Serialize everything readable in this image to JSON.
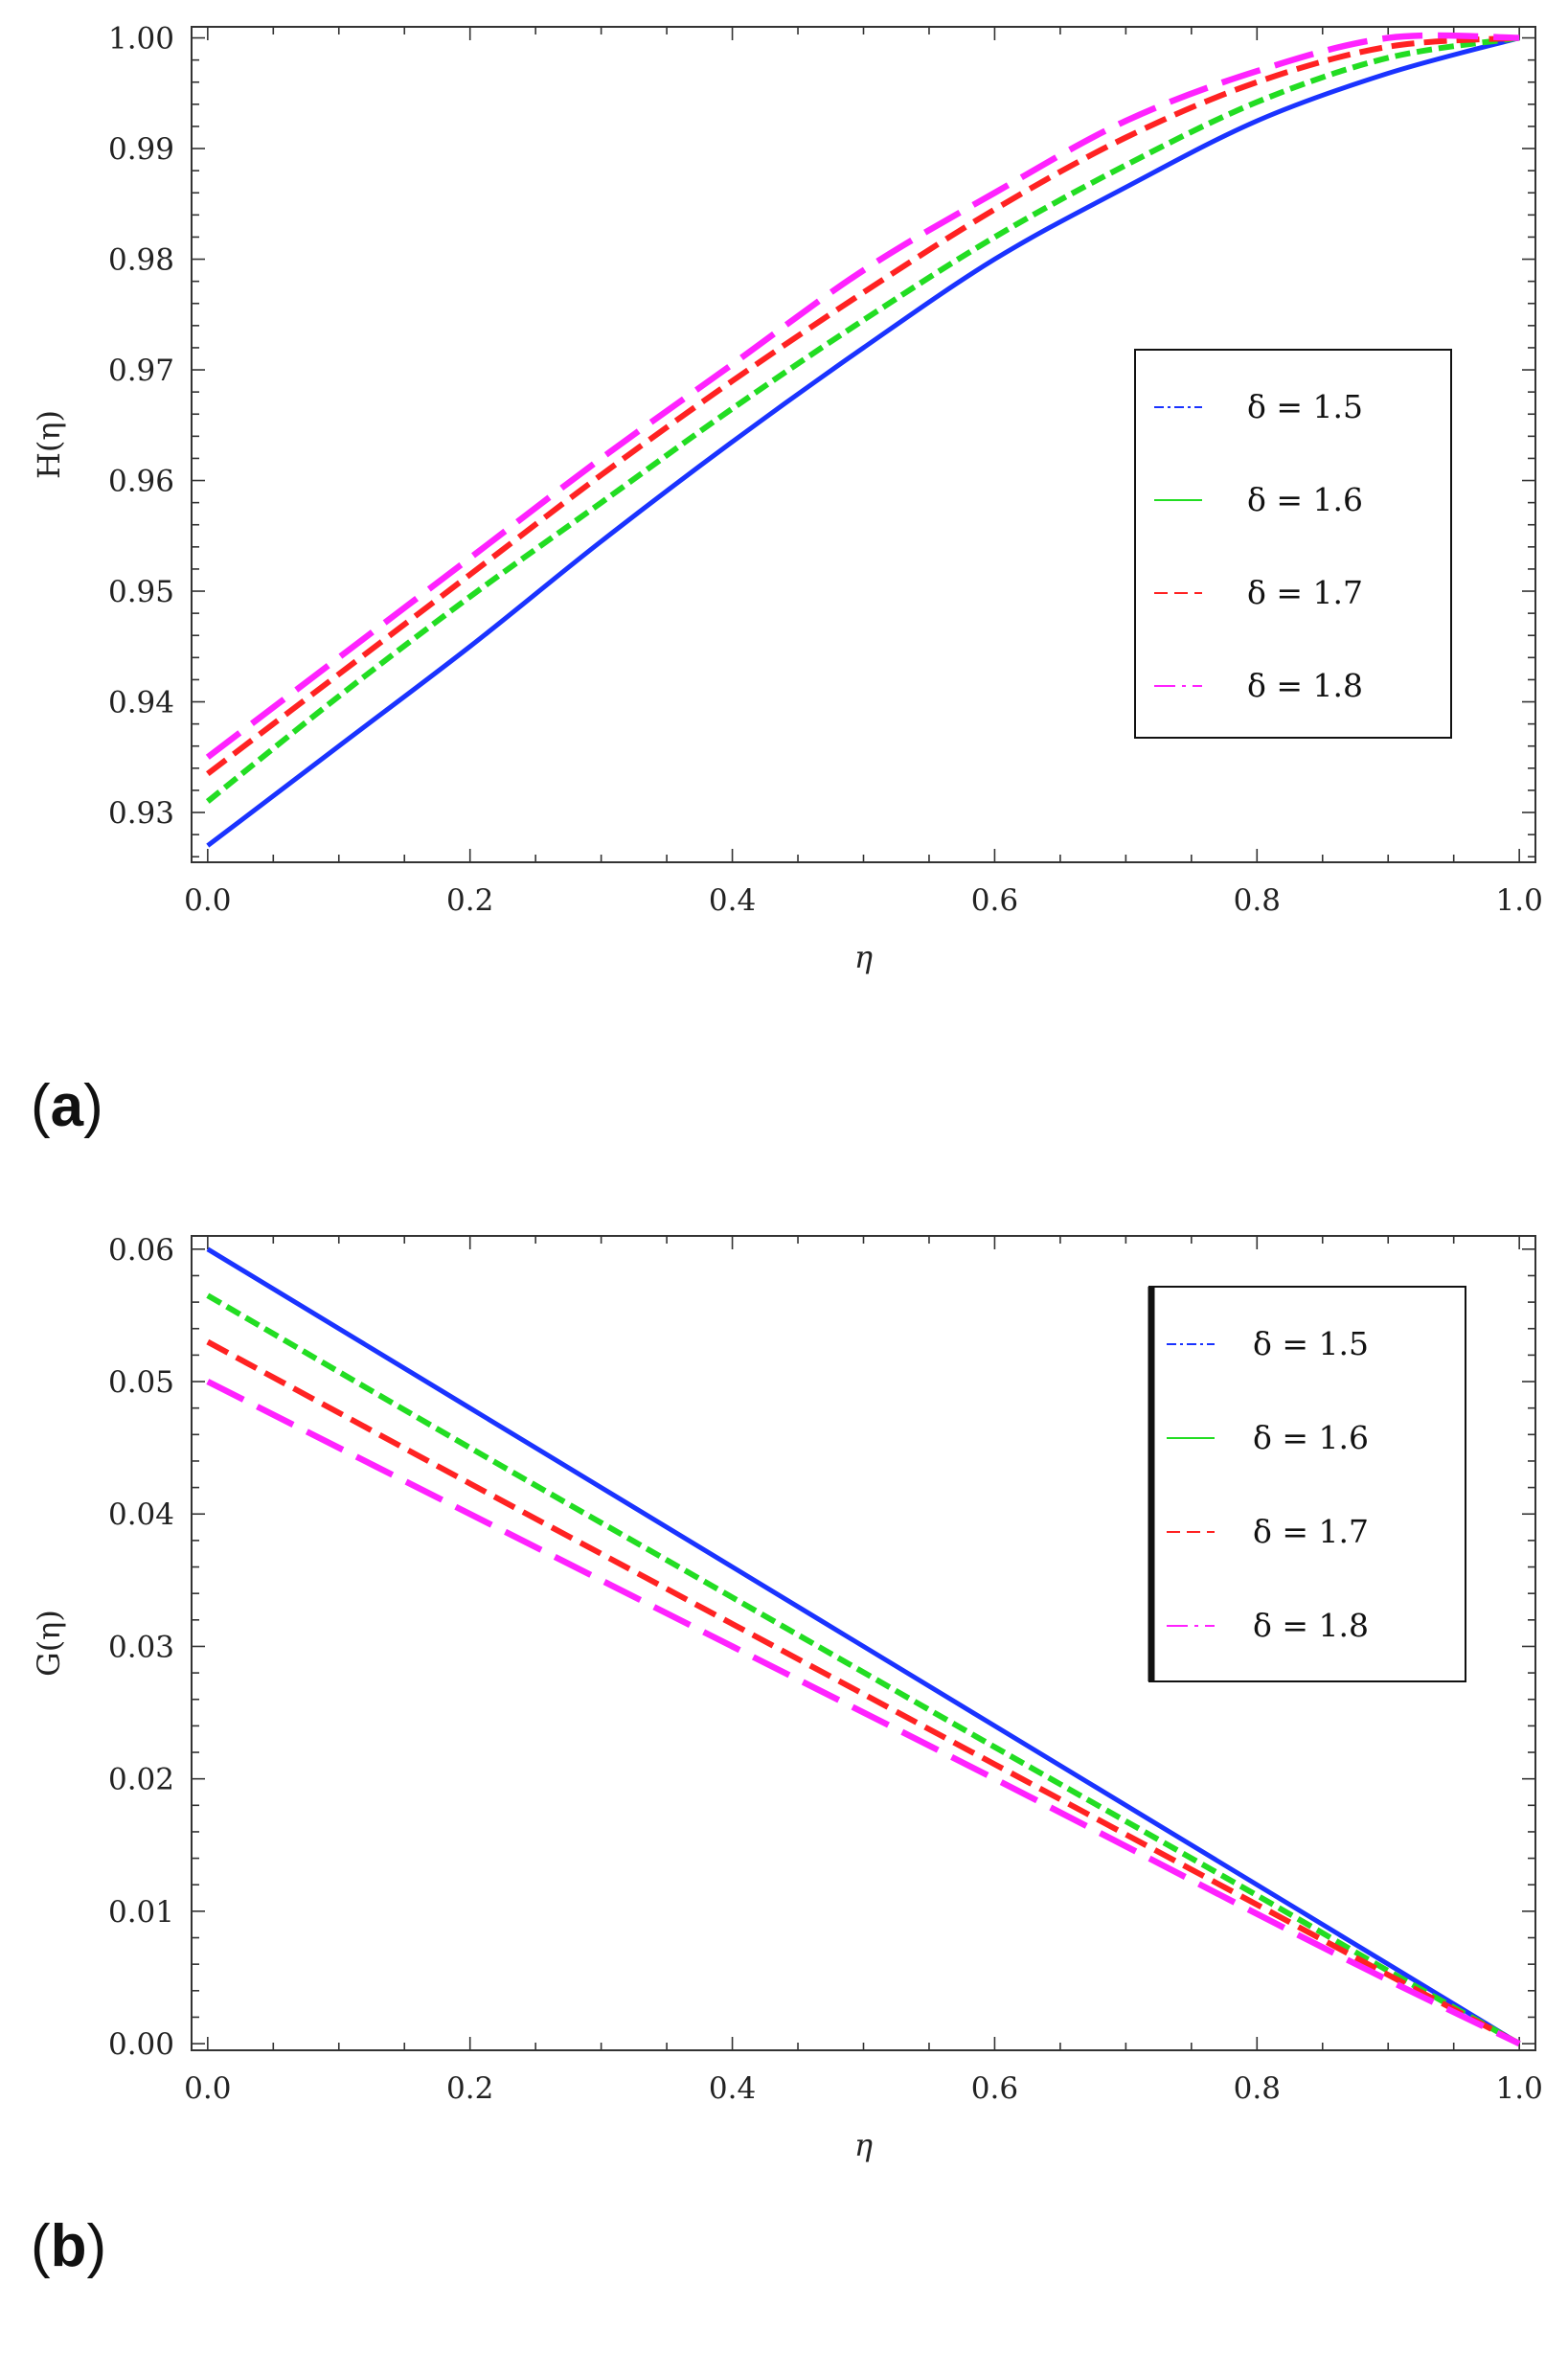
{
  "chart_data": [
    {
      "panel_label": "(a)",
      "panel_paren_open": "(",
      "panel_letter": "a",
      "panel_paren_close": ")",
      "type": "line",
      "title": "",
      "xlabel": "η",
      "ylabel": "H(η)",
      "xlim": [
        0.0,
        1.0
      ],
      "ylim": [
        0.9255,
        1.001
      ],
      "xticks": [
        0.0,
        0.2,
        0.4,
        0.6,
        0.8,
        1.0
      ],
      "xtick_labels": [
        "0.0",
        "0.2",
        "0.4",
        "0.6",
        "0.8",
        "1.0"
      ],
      "yticks": [
        0.93,
        0.94,
        0.95,
        0.96,
        0.97,
        0.98,
        0.99,
        1.0
      ],
      "ytick_labels": [
        "0.93",
        "0.94",
        "0.95",
        "0.96",
        "0.97",
        "0.98",
        "0.99",
        "1.00"
      ],
      "legend_position": "center-right",
      "x": [
        0.0,
        0.1,
        0.2,
        0.3,
        0.4,
        0.5,
        0.6,
        0.7,
        0.8,
        0.9,
        1.0
      ],
      "series": [
        {
          "name": "δ = 1.5",
          "color": "#1a33ff",
          "dash": "solid",
          "values": [
            0.927,
            0.936,
            0.945,
            0.9545,
            0.9635,
            0.972,
            0.98,
            0.9865,
            0.9925,
            0.9968,
            1.0
          ]
        },
        {
          "name": "δ = 1.6",
          "color": "#22dd22",
          "dash": "short",
          "values": [
            0.931,
            0.9405,
            0.9495,
            0.958,
            0.9665,
            0.9745,
            0.982,
            0.9885,
            0.9942,
            0.9982,
            1.0
          ]
        },
        {
          "name": "δ = 1.7",
          "color": "#ff2222",
          "dash": "medium",
          "values": [
            0.9335,
            0.9425,
            0.9515,
            0.9605,
            0.969,
            0.977,
            0.9845,
            0.991,
            0.996,
            0.9992,
            1.0
          ]
        },
        {
          "name": "δ = 1.8",
          "color": "#ff22ff",
          "dash": "long",
          "values": [
            0.935,
            0.944,
            0.953,
            0.962,
            0.9705,
            0.979,
            0.986,
            0.9925,
            0.997,
            1.0,
            1.0
          ]
        }
      ]
    },
    {
      "panel_label": "(b)",
      "panel_paren_open": "(",
      "panel_letter": "b",
      "panel_paren_close": ")",
      "type": "line",
      "title": "",
      "xlabel": "η",
      "ylabel": "G(η)",
      "xlim": [
        0.0,
        1.0
      ],
      "ylim": [
        -0.0005,
        0.061
      ],
      "xticks": [
        0.0,
        0.2,
        0.4,
        0.6,
        0.8,
        1.0
      ],
      "xtick_labels": [
        "0.0",
        "0.2",
        "0.4",
        "0.6",
        "0.8",
        "1.0"
      ],
      "yticks": [
        0.0,
        0.01,
        0.02,
        0.03,
        0.04,
        0.05,
        0.06
      ],
      "ytick_labels": [
        "0.00",
        "0.01",
        "0.02",
        "0.03",
        "0.04",
        "0.05",
        "0.06"
      ],
      "legend_position": "top-right",
      "x": [
        0.0,
        0.2,
        0.4,
        0.6,
        0.8,
        0.9,
        1.0
      ],
      "series": [
        {
          "name": "δ = 1.5",
          "color": "#1a33ff",
          "dash": "solid",
          "values": [
            0.06,
            0.048,
            0.036,
            0.024,
            0.012,
            0.006,
            0.0
          ]
        },
        {
          "name": "δ = 1.6",
          "color": "#22dd22",
          "dash": "short",
          "values": [
            0.0565,
            0.045,
            0.0337,
            0.0224,
            0.0112,
            0.0055,
            0.0
          ]
        },
        {
          "name": "δ = 1.7",
          "color": "#ff2222",
          "dash": "medium",
          "values": [
            0.053,
            0.0423,
            0.0317,
            0.0211,
            0.0105,
            0.0052,
            0.0
          ]
        },
        {
          "name": "δ = 1.8",
          "color": "#ff22ff",
          "dash": "long",
          "values": [
            0.05,
            0.04,
            0.03,
            0.02,
            0.0098,
            0.0048,
            0.0
          ]
        }
      ]
    }
  ]
}
